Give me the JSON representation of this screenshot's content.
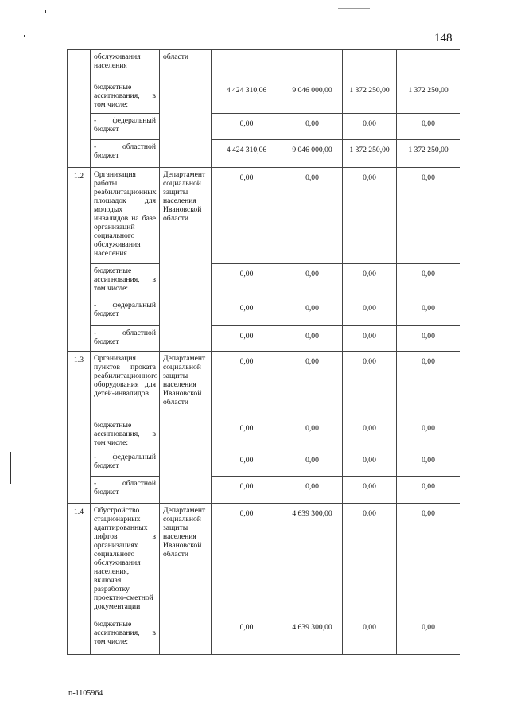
{
  "page_number": "148",
  "footer_code": "п-1105964",
  "sections": [
    {
      "number": "",
      "department": "области",
      "rows": [
        {
          "label": "обслуживания населения",
          "values": [
            "",
            "",
            "",
            ""
          ]
        },
        {
          "label": "бюджетные ассигнования, в том числе:",
          "values": [
            "4 424 310,06",
            "9 046 000,00",
            "1 372 250,00",
            "1 372 250,00"
          ]
        },
        {
          "label": "- федеральный бюджет",
          "values": [
            "0,00",
            "0,00",
            "0,00",
            "0,00"
          ]
        },
        {
          "label": "- областной бюджет",
          "values": [
            "4 424 310,06",
            "9 046 000,00",
            "1 372 250,00",
            "1 372 250,00"
          ]
        }
      ]
    },
    {
      "number": "1.2",
      "department": "Департамент социальной защиты населения Ивановской области",
      "rows": [
        {
          "label": "Организация работы реабилитационных площадок для молодых инвалидов на базе организаций социального обслуживания населения",
          "values": [
            "0,00",
            "0,00",
            "0,00",
            "0,00"
          ]
        },
        {
          "label": "бюджетные ассигнования, в том числе:",
          "values": [
            "0,00",
            "0,00",
            "0,00",
            "0,00"
          ]
        },
        {
          "label": "- федеральный бюджет",
          "values": [
            "0,00",
            "0,00",
            "0,00",
            "0,00"
          ]
        },
        {
          "label": "- областной бюджет",
          "values": [
            "0,00",
            "0,00",
            "0,00",
            "0,00"
          ]
        }
      ]
    },
    {
      "number": "1.3",
      "department": "Департамент социальной защиты населения Ивановской области",
      "rows": [
        {
          "label": "Организация пунктов проката реабилитационного оборудования для детей-инвалидов",
          "values": [
            "0,00",
            "0,00",
            "0,00",
            "0,00"
          ]
        },
        {
          "label": "бюджетные ассигнования, в том числе:",
          "values": [
            "0,00",
            "0,00",
            "0,00",
            "0,00"
          ]
        },
        {
          "label": "- федеральный бюджет",
          "values": [
            "0,00",
            "0,00",
            "0,00",
            "0,00"
          ]
        },
        {
          "label": "- областной бюджет",
          "values": [
            "0,00",
            "0,00",
            "0,00",
            "0,00"
          ]
        }
      ]
    },
    {
      "number": "1.4",
      "department": "Департамент социальной защиты населения Ивановской области",
      "rows": [
        {
          "label": "Обустройство стационарных адаптированных лифтов в организациях социального обслуживания населения, включая разработку проектно-сметной документации",
          "values": [
            "0,00",
            "4 639 300,00",
            "0,00",
            "0,00"
          ]
        },
        {
          "label": "бюджетные ассигнования, в том числе:",
          "values": [
            "0,00",
            "4 639 300,00",
            "0,00",
            "0,00"
          ]
        }
      ]
    }
  ]
}
